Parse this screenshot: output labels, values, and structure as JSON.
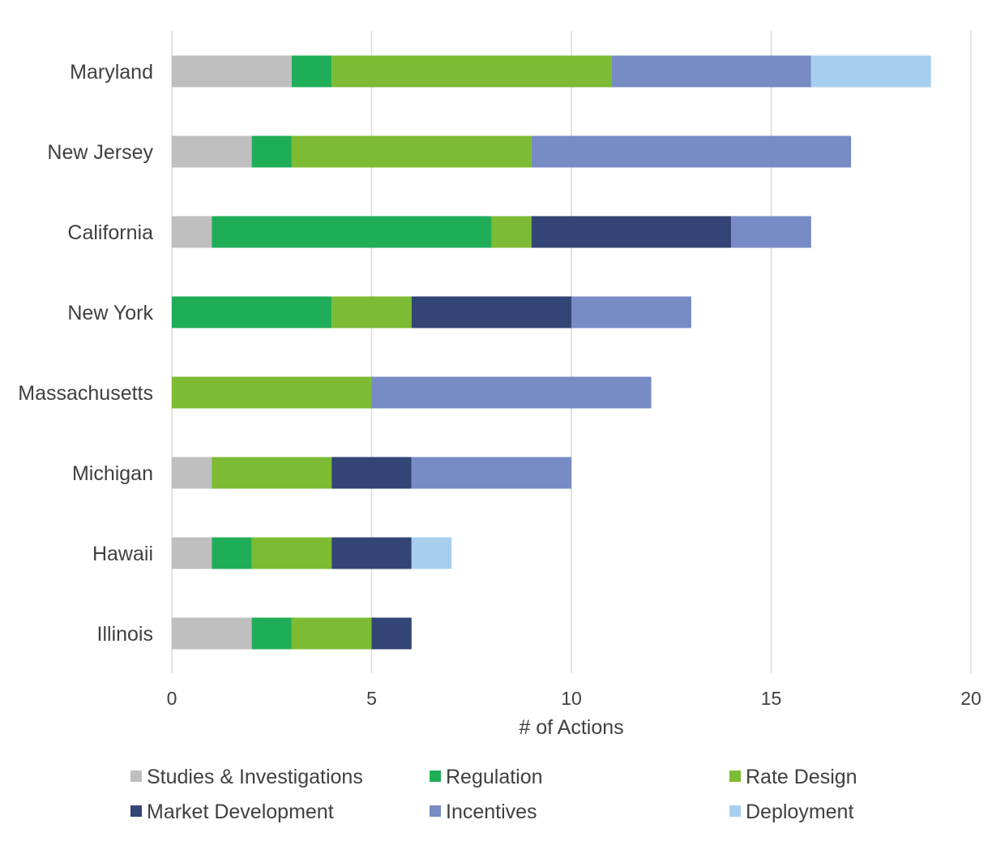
{
  "chart_data": {
    "type": "bar",
    "orientation": "horizontal",
    "stacked": true,
    "title": "",
    "xlabel": "# of Actions",
    "ylabel": "",
    "xlim": [
      0,
      20
    ],
    "xticks": [
      0,
      5,
      10,
      15,
      20
    ],
    "grid": "vertical",
    "legend_position": "bottom",
    "categories": [
      "Maryland",
      "New Jersey",
      "California",
      "New York",
      "Massachusetts",
      "Michigan",
      "Hawaii",
      "Illinois"
    ],
    "series": [
      {
        "name": "Studies & Investigations",
        "color": "#bfbfbf",
        "values": [
          3,
          2,
          1,
          0,
          0,
          1,
          1,
          2
        ]
      },
      {
        "name": "Regulation",
        "color": "#20ad58",
        "values": [
          1,
          1,
          7,
          4,
          0,
          0,
          1,
          1
        ]
      },
      {
        "name": "Rate Design",
        "color": "#7cbb33",
        "values": [
          7,
          6,
          1,
          2,
          5,
          3,
          2,
          2
        ]
      },
      {
        "name": "Market Development",
        "color": "#334575",
        "values": [
          0,
          0,
          5,
          4,
          0,
          2,
          2,
          1
        ]
      },
      {
        "name": "Incentives",
        "color": "#778bc5",
        "values": [
          5,
          8,
          2,
          3,
          7,
          4,
          0,
          0
        ]
      },
      {
        "name": "Deployment",
        "color": "#a6cfee",
        "values": [
          3,
          0,
          0,
          0,
          0,
          0,
          1,
          0
        ]
      }
    ],
    "colors": {
      "text": "#404040",
      "grid": "#d9d9d9"
    }
  }
}
